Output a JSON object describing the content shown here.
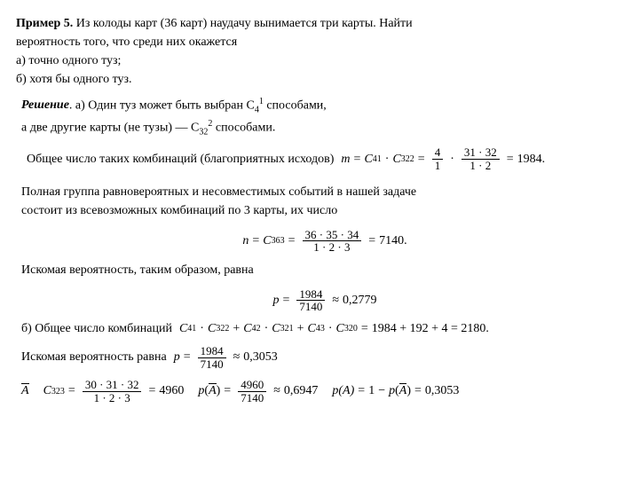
{
  "title_bold": "Пример 5.",
  "title_rest": " Из колоды карт (36 карт) наудачу вынимается три карты. Найти",
  "l2": "вероятность того, что среди них окажется",
  "l3": "а) точно одного туз;",
  "l4": "б) хотя бы одного туз.",
  "sol_bold": "Решение",
  "sol_a1": ". а) Один туз может быть выбран C",
  "c41_b": "4",
  "c41_t": "1",
  "sol_a1_end": " способами,",
  "sol_a2": "а две другие карты (не тузы) — C",
  "c322_b": "32",
  "c322_t": "2",
  "sol_a2_end": " способами.",
  "sol_a3": "Общее число таких комбинаций (благоприятных исходов)",
  "m": "m",
  "eqs": "=",
  "C": "C",
  "dot": "·",
  "f1": {
    "n": "4",
    "d": "1"
  },
  "f2": {
    "n": "31 · 32",
    "d": "1 · 2"
  },
  "r1": "1984.",
  "p2a": "Полная группа равновероятных и несовместимых событий в нашей задаче",
  "p2b": "состоит из всевозможных комбинаций по 3 карты, их число",
  "n": "n",
  "c363_b": "36",
  "c363_t": "3",
  "f3": {
    "n": "36 · 35 · 34",
    "d": "1 · 2 · 3"
  },
  "r2": "7140.",
  "p3": "Искомая вероятность, таким образом, равна",
  "p": "p",
  "f4": {
    "n": "1984",
    "d": "7140"
  },
  "approx": "≈",
  "r3": "0,2779",
  "p4": "б) Общее число комбинаций",
  "plus": "+",
  "r4": "1984 + 192 + 4 = 2180.",
  "p5": "Искомая вероятность равна",
  "r5": "0,3053",
  "abar": "A",
  "f6": {
    "n": "30 · 31 · 32",
    "d": "1 · 2 · 3"
  },
  "r6": "4960",
  "f7": {
    "n": "4960",
    "d": "7140"
  },
  "r7": "0,6947",
  "pA": "p(A)",
  "one": "1",
  "minus": "−",
  "r8": "0,3053"
}
